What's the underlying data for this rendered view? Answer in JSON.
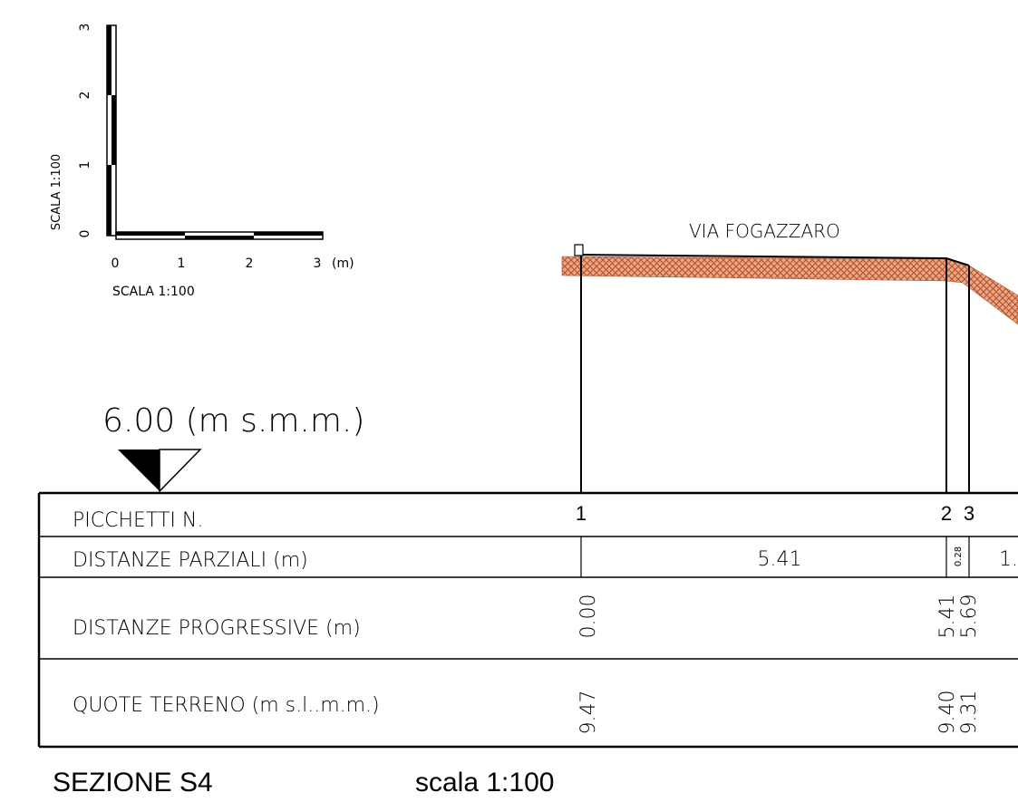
{
  "scale_bar": {
    "vertical_label": "SCALA 1:100",
    "vertical_ticks": [
      "0",
      "1",
      "2",
      "3"
    ],
    "horizontal_label": "SCALA 1:100",
    "horizontal_ticks": [
      "0",
      "1",
      "2",
      "3"
    ],
    "unit": "(m)"
  },
  "street_name": "VIA FOGAZZARO",
  "datum": {
    "label": "6.00 (m s.m.m.)"
  },
  "table": {
    "row_labels": {
      "picchetti": "PICCHETTI N.",
      "parziali": "DISTANZE PARZIALI (m)",
      "progressive": "DISTANZE PROGRESSIVE (m)",
      "quote": "QUOTE TERRENO (m s.l..m.m.)"
    },
    "picchetti": [
      "1",
      "2",
      "3"
    ],
    "parziali": [
      "5.41",
      "0.28",
      "1."
    ],
    "progressive": [
      "0.00",
      "5.41",
      "5.69"
    ],
    "quote": [
      "9.47",
      "9.40",
      "9.31"
    ]
  },
  "title": "SEZIONE S4",
  "scale": "scala 1:100",
  "colors": {
    "terrain_hatch": "#c0603a",
    "ink": "#000000"
  }
}
